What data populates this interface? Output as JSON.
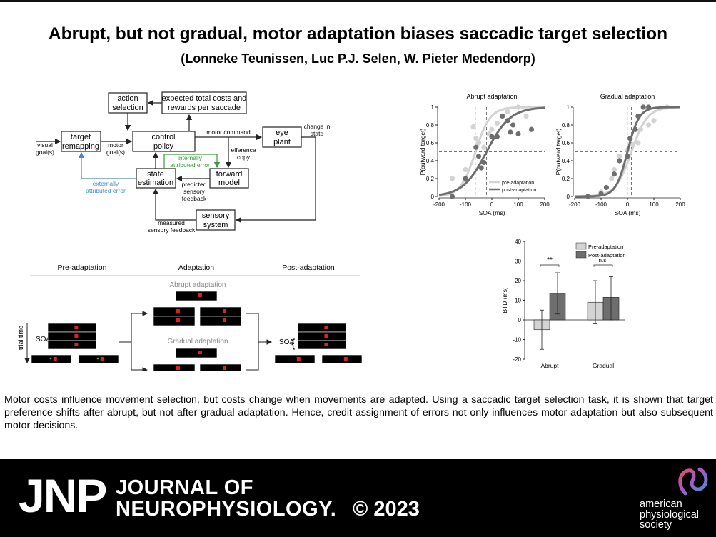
{
  "title": "Abrupt, but not gradual, motor adaptation biases saccadic target selection",
  "authors": "(Lonneke Teunissen, Luc P.J. Selen, W. Pieter Medendorp)",
  "diagram": {
    "visual_goal": [
      "visual",
      "goal(s)"
    ],
    "target_remapping": [
      "target",
      "remapping"
    ],
    "motor_goal": [
      "motor",
      "goal(s)"
    ],
    "action_selection": [
      "action",
      "selection"
    ],
    "expected_costs": [
      "expected total costs and",
      "rewards per saccade"
    ],
    "control_policy": [
      "control",
      "policy"
    ],
    "motor_command": "motor command",
    "eye_plant": [
      "eye",
      "plant"
    ],
    "change_in_state": [
      "change in",
      "state"
    ],
    "efference_copy": [
      "efference",
      "copy"
    ],
    "internally_attributed_error": [
      "internally",
      "attributed error"
    ],
    "externally_attributed_error": [
      "externally",
      "attributed error"
    ],
    "state_estimation": [
      "state",
      "estimation"
    ],
    "forward_model": [
      "forward",
      "model"
    ],
    "predicted_feedback": [
      "predicted",
      "sensory",
      "feedback"
    ],
    "measured_feedback": [
      "measured",
      "sensory feedback"
    ],
    "sensory_system": [
      "sensory",
      "system"
    ]
  },
  "paradigm": {
    "pre_adaptation": "Pre-adaptation",
    "adaptation": "Adaptation",
    "post_adaptation": "Post-adaptation",
    "abrupt_adaptation": "Abrupt adaptation",
    "gradual_adaptation": "Gradual adaptation",
    "trial_time": "trial time",
    "soa": "SOA"
  },
  "colors": {
    "pre": "#d3d3d3",
    "post": "#6e6e6e",
    "internal_error": "#3a9a3a",
    "external_error": "#4a86c5"
  },
  "chart_data": [
    {
      "type": "scatter",
      "title": "Abrupt adaptation",
      "xlabel": "SOA (ms)",
      "ylabel": "P(outward target)",
      "xlim": [
        -200,
        200
      ],
      "ylim": [
        0,
        1
      ],
      "xticks": [
        -200,
        -100,
        0,
        100,
        200
      ],
      "yticks": [
        0,
        0.2,
        0.4,
        0.6,
        0.8,
        1
      ],
      "legend": "bottom-right",
      "series": [
        {
          "name": "pre-adaptation",
          "color": "#d3d3d3",
          "points": [
            [
              -150,
              0.2
            ],
            [
              -100,
              0.3
            ],
            [
              -70,
              0.78
            ],
            [
              -60,
              0.65
            ],
            [
              -50,
              0.6
            ],
            [
              -30,
              0.55
            ],
            [
              -10,
              0.7
            ],
            [
              0,
              0.75
            ],
            [
              20,
              0.82
            ],
            [
              40,
              0.9
            ],
            [
              60,
              0.95
            ],
            [
              100,
              1.0
            ],
            [
              130,
              0.9
            ]
          ],
          "center": -62,
          "scale": 28
        },
        {
          "name": "post-adaptation",
          "color": "#6e6e6e",
          "points": [
            [
              -150,
              0.0
            ],
            [
              -100,
              0.2
            ],
            [
              -60,
              0.55
            ],
            [
              -50,
              0.45
            ],
            [
              -40,
              0.32
            ],
            [
              -30,
              0.38
            ],
            [
              0,
              0.67
            ],
            [
              20,
              0.67
            ],
            [
              40,
              0.9
            ],
            [
              60,
              0.85
            ],
            [
              70,
              0.72
            ],
            [
              80,
              0.8
            ],
            [
              100,
              0.7
            ],
            [
              150,
              0.75
            ]
          ],
          "center": -20,
          "scale": 45
        }
      ],
      "reference_lines": {
        "y": 0.5,
        "x": [
          -62,
          -20
        ]
      }
    },
    {
      "type": "scatter",
      "title": "Gradual adaptation",
      "xlabel": "SOA (ms)",
      "ylabel": "P(outward target)",
      "xlim": [
        -200,
        200
      ],
      "ylim": [
        0,
        1
      ],
      "xticks": [
        -200,
        -100,
        0,
        100,
        200
      ],
      "yticks": [
        0,
        0.2,
        0.4,
        0.6,
        0.8,
        1
      ],
      "series": [
        {
          "name": "pre-adaptation",
          "color": "#d3d3d3",
          "points": [
            [
              -150,
              0.0
            ],
            [
              -100,
              0.05
            ],
            [
              -60,
              0.2
            ],
            [
              -50,
              0.3
            ],
            [
              -30,
              0.45
            ],
            [
              0,
              0.52
            ],
            [
              20,
              0.58
            ],
            [
              40,
              0.6
            ],
            [
              50,
              0.75
            ],
            [
              80,
              0.8
            ],
            [
              100,
              0.85
            ],
            [
              150,
              1.0
            ]
          ],
          "center": 15,
          "scale": 30
        },
        {
          "name": "post-adaptation",
          "color": "#6e6e6e",
          "points": [
            [
              -150,
              0.0
            ],
            [
              -100,
              0.03
            ],
            [
              -80,
              0.1
            ],
            [
              -50,
              0.25
            ],
            [
              -30,
              0.4
            ],
            [
              0,
              0.45
            ],
            [
              10,
              0.65
            ],
            [
              30,
              0.75
            ],
            [
              40,
              0.9
            ],
            [
              60,
              1.0
            ],
            [
              80,
              1.0
            ]
          ],
          "center": 0,
          "scale": 22
        }
      ],
      "reference_lines": {
        "y": 0.5,
        "x": [
          0,
          15
        ]
      }
    },
    {
      "type": "bar",
      "ylabel": "BTD (ms)",
      "ylim": [
        -20,
        40
      ],
      "yticks": [
        -20,
        -10,
        0,
        10,
        20,
        30,
        40
      ],
      "categories": [
        "Abrupt",
        "Gradual"
      ],
      "legend": "top-right",
      "series": [
        {
          "name": "Pre-adaptation",
          "color": "#d3d3d3",
          "values": [
            -5,
            9
          ],
          "err_high": [
            5,
            20
          ],
          "err_low": [
            -15,
            -2
          ]
        },
        {
          "name": "Post-adaptation",
          "color": "#6e6e6e",
          "values": [
            13.5,
            11.5
          ],
          "err_high": [
            24,
            22
          ],
          "err_low": [
            3,
            0
          ]
        }
      ],
      "annotations": [
        "**",
        "n.s."
      ]
    }
  ],
  "abstract": "Motor costs influence movement selection, but costs change when movements are adapted. Using a saccadic target selection task, it is shown that target preference shifts after abrupt, but not after gradual adaptation. Hence, credit assignment of errors not only influences motor adaptation but also subsequent motor decisions.",
  "footer": {
    "jnp": "JNP",
    "journal_line1": "JOURNAL OF",
    "journal_line2": "NEUROPHYSIOLOGY.",
    "copyright": "© 2023",
    "society": [
      "american",
      "physiological",
      "society"
    ]
  }
}
